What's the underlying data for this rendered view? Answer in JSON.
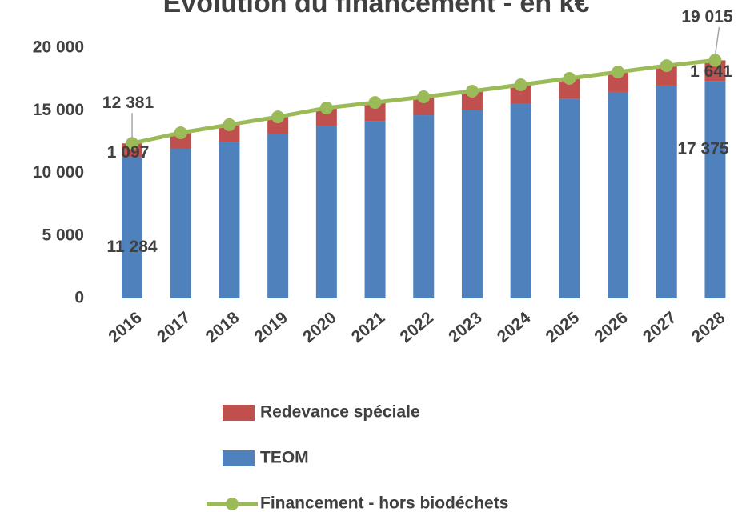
{
  "chart_data": {
    "type": "bar",
    "title": "Evolution du financement - en k€",
    "categories": [
      "2016",
      "2017",
      "2018",
      "2019",
      "2020",
      "2021",
      "2022",
      "2023",
      "2024",
      "2025",
      "2026",
      "2027",
      "2028"
    ],
    "stacked": true,
    "series": [
      {
        "name": "Redevance spéciale",
        "type": "bar",
        "color": "#c0504d",
        "values": [
          1097,
          1280,
          1350,
          1340,
          1410,
          1470,
          1470,
          1470,
          1530,
          1600,
          1590,
          1590,
          1641
        ],
        "value_labels": [
          "1 097",
          null,
          null,
          null,
          null,
          null,
          null,
          null,
          null,
          null,
          null,
          null,
          "1 641"
        ]
      },
      {
        "name": "TEOM",
        "type": "bar",
        "color": "#4f81bd",
        "values": [
          11284,
          11950,
          12520,
          13160,
          13800,
          14180,
          14630,
          15080,
          15530,
          15970,
          16490,
          17000,
          17375
        ],
        "value_labels": [
          "11 284",
          null,
          null,
          null,
          null,
          null,
          null,
          null,
          null,
          null,
          null,
          null,
          "17 375"
        ]
      },
      {
        "name": "Financement - hors biodéchets",
        "type": "line",
        "color": "#9bbb59",
        "values": [
          12381,
          13230,
          13870,
          14500,
          15210,
          15650,
          16100,
          16550,
          17060,
          17570,
          18080,
          18590,
          19015
        ],
        "value_labels": [
          "12 381",
          null,
          null,
          null,
          null,
          null,
          null,
          null,
          null,
          null,
          null,
          null,
          "19 015"
        ]
      }
    ],
    "ylim": [
      0,
      20000
    ],
    "yticks": [
      0,
      {
        "value": 5000,
        "label": "5 000"
      },
      {
        "value": 10000,
        "label": "10 000"
      },
      {
        "value": 15000,
        "label": "15 000"
      },
      {
        "value": 20000,
        "label": "20 000"
      }
    ],
    "grid": false,
    "legend": "bottom"
  }
}
